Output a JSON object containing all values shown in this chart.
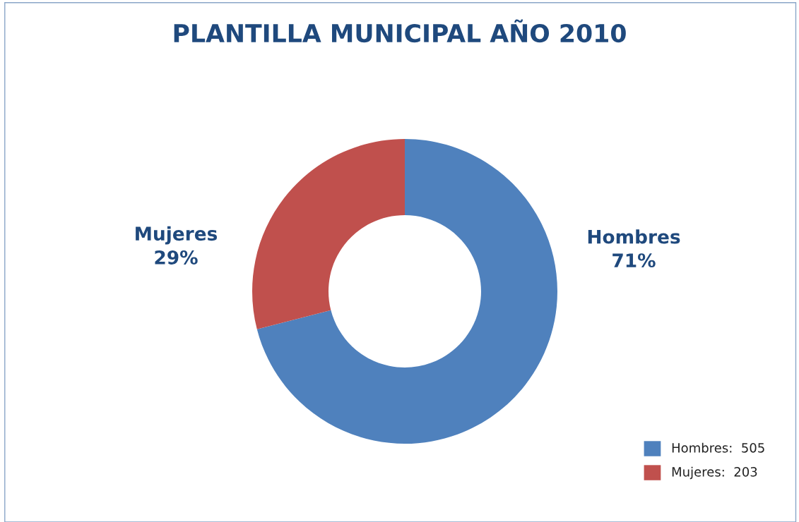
{
  "chart_data": {
    "type": "donut",
    "title": "PLANTILLA MUNICIPAL AÑO 2010",
    "categories": [
      "Hombres",
      "Mujeres"
    ],
    "values": [
      71,
      29
    ],
    "value_labels": [
      "71%",
      "29%"
    ],
    "annotations": [
      "Hombres:  505",
      "Mujeres:  203"
    ],
    "colors": [
      "#4f81bd",
      "#c0504d"
    ]
  }
}
